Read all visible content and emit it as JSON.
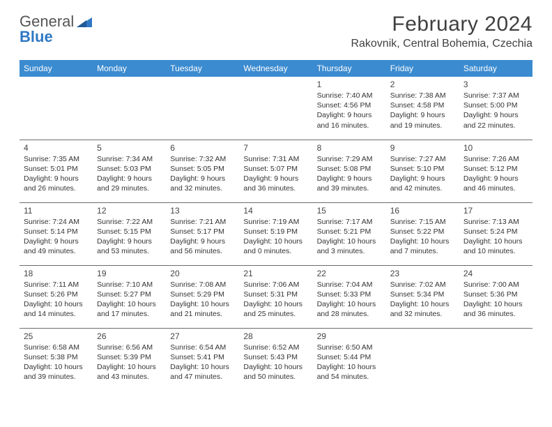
{
  "logo": {
    "text1": "General",
    "text2": "Blue",
    "icon_color": "#2f78c4"
  },
  "title": "February 2024",
  "subtitle": "Rakovnik, Central Bohemia, Czechia",
  "colors": {
    "header_bg": "#3b8bd0",
    "header_text": "#ffffff",
    "border": "#6b6b6b",
    "text": "#333333"
  },
  "day_headers": [
    "Sunday",
    "Monday",
    "Tuesday",
    "Wednesday",
    "Thursday",
    "Friday",
    "Saturday"
  ],
  "weeks": [
    [
      null,
      null,
      null,
      null,
      {
        "num": "1",
        "sunrise": "Sunrise: 7:40 AM",
        "sunset": "Sunset: 4:56 PM",
        "daylight1": "Daylight: 9 hours",
        "daylight2": "and 16 minutes."
      },
      {
        "num": "2",
        "sunrise": "Sunrise: 7:38 AM",
        "sunset": "Sunset: 4:58 PM",
        "daylight1": "Daylight: 9 hours",
        "daylight2": "and 19 minutes."
      },
      {
        "num": "3",
        "sunrise": "Sunrise: 7:37 AM",
        "sunset": "Sunset: 5:00 PM",
        "daylight1": "Daylight: 9 hours",
        "daylight2": "and 22 minutes."
      }
    ],
    [
      {
        "num": "4",
        "sunrise": "Sunrise: 7:35 AM",
        "sunset": "Sunset: 5:01 PM",
        "daylight1": "Daylight: 9 hours",
        "daylight2": "and 26 minutes."
      },
      {
        "num": "5",
        "sunrise": "Sunrise: 7:34 AM",
        "sunset": "Sunset: 5:03 PM",
        "daylight1": "Daylight: 9 hours",
        "daylight2": "and 29 minutes."
      },
      {
        "num": "6",
        "sunrise": "Sunrise: 7:32 AM",
        "sunset": "Sunset: 5:05 PM",
        "daylight1": "Daylight: 9 hours",
        "daylight2": "and 32 minutes."
      },
      {
        "num": "7",
        "sunrise": "Sunrise: 7:31 AM",
        "sunset": "Sunset: 5:07 PM",
        "daylight1": "Daylight: 9 hours",
        "daylight2": "and 36 minutes."
      },
      {
        "num": "8",
        "sunrise": "Sunrise: 7:29 AM",
        "sunset": "Sunset: 5:08 PM",
        "daylight1": "Daylight: 9 hours",
        "daylight2": "and 39 minutes."
      },
      {
        "num": "9",
        "sunrise": "Sunrise: 7:27 AM",
        "sunset": "Sunset: 5:10 PM",
        "daylight1": "Daylight: 9 hours",
        "daylight2": "and 42 minutes."
      },
      {
        "num": "10",
        "sunrise": "Sunrise: 7:26 AM",
        "sunset": "Sunset: 5:12 PM",
        "daylight1": "Daylight: 9 hours",
        "daylight2": "and 46 minutes."
      }
    ],
    [
      {
        "num": "11",
        "sunrise": "Sunrise: 7:24 AM",
        "sunset": "Sunset: 5:14 PM",
        "daylight1": "Daylight: 9 hours",
        "daylight2": "and 49 minutes."
      },
      {
        "num": "12",
        "sunrise": "Sunrise: 7:22 AM",
        "sunset": "Sunset: 5:15 PM",
        "daylight1": "Daylight: 9 hours",
        "daylight2": "and 53 minutes."
      },
      {
        "num": "13",
        "sunrise": "Sunrise: 7:21 AM",
        "sunset": "Sunset: 5:17 PM",
        "daylight1": "Daylight: 9 hours",
        "daylight2": "and 56 minutes."
      },
      {
        "num": "14",
        "sunrise": "Sunrise: 7:19 AM",
        "sunset": "Sunset: 5:19 PM",
        "daylight1": "Daylight: 10 hours",
        "daylight2": "and 0 minutes."
      },
      {
        "num": "15",
        "sunrise": "Sunrise: 7:17 AM",
        "sunset": "Sunset: 5:21 PM",
        "daylight1": "Daylight: 10 hours",
        "daylight2": "and 3 minutes."
      },
      {
        "num": "16",
        "sunrise": "Sunrise: 7:15 AM",
        "sunset": "Sunset: 5:22 PM",
        "daylight1": "Daylight: 10 hours",
        "daylight2": "and 7 minutes."
      },
      {
        "num": "17",
        "sunrise": "Sunrise: 7:13 AM",
        "sunset": "Sunset: 5:24 PM",
        "daylight1": "Daylight: 10 hours",
        "daylight2": "and 10 minutes."
      }
    ],
    [
      {
        "num": "18",
        "sunrise": "Sunrise: 7:11 AM",
        "sunset": "Sunset: 5:26 PM",
        "daylight1": "Daylight: 10 hours",
        "daylight2": "and 14 minutes."
      },
      {
        "num": "19",
        "sunrise": "Sunrise: 7:10 AM",
        "sunset": "Sunset: 5:27 PM",
        "daylight1": "Daylight: 10 hours",
        "daylight2": "and 17 minutes."
      },
      {
        "num": "20",
        "sunrise": "Sunrise: 7:08 AM",
        "sunset": "Sunset: 5:29 PM",
        "daylight1": "Daylight: 10 hours",
        "daylight2": "and 21 minutes."
      },
      {
        "num": "21",
        "sunrise": "Sunrise: 7:06 AM",
        "sunset": "Sunset: 5:31 PM",
        "daylight1": "Daylight: 10 hours",
        "daylight2": "and 25 minutes."
      },
      {
        "num": "22",
        "sunrise": "Sunrise: 7:04 AM",
        "sunset": "Sunset: 5:33 PM",
        "daylight1": "Daylight: 10 hours",
        "daylight2": "and 28 minutes."
      },
      {
        "num": "23",
        "sunrise": "Sunrise: 7:02 AM",
        "sunset": "Sunset: 5:34 PM",
        "daylight1": "Daylight: 10 hours",
        "daylight2": "and 32 minutes."
      },
      {
        "num": "24",
        "sunrise": "Sunrise: 7:00 AM",
        "sunset": "Sunset: 5:36 PM",
        "daylight1": "Daylight: 10 hours",
        "daylight2": "and 36 minutes."
      }
    ],
    [
      {
        "num": "25",
        "sunrise": "Sunrise: 6:58 AM",
        "sunset": "Sunset: 5:38 PM",
        "daylight1": "Daylight: 10 hours",
        "daylight2": "and 39 minutes."
      },
      {
        "num": "26",
        "sunrise": "Sunrise: 6:56 AM",
        "sunset": "Sunset: 5:39 PM",
        "daylight1": "Daylight: 10 hours",
        "daylight2": "and 43 minutes."
      },
      {
        "num": "27",
        "sunrise": "Sunrise: 6:54 AM",
        "sunset": "Sunset: 5:41 PM",
        "daylight1": "Daylight: 10 hours",
        "daylight2": "and 47 minutes."
      },
      {
        "num": "28",
        "sunrise": "Sunrise: 6:52 AM",
        "sunset": "Sunset: 5:43 PM",
        "daylight1": "Daylight: 10 hours",
        "daylight2": "and 50 minutes."
      },
      {
        "num": "29",
        "sunrise": "Sunrise: 6:50 AM",
        "sunset": "Sunset: 5:44 PM",
        "daylight1": "Daylight: 10 hours",
        "daylight2": "and 54 minutes."
      },
      null,
      null
    ]
  ]
}
